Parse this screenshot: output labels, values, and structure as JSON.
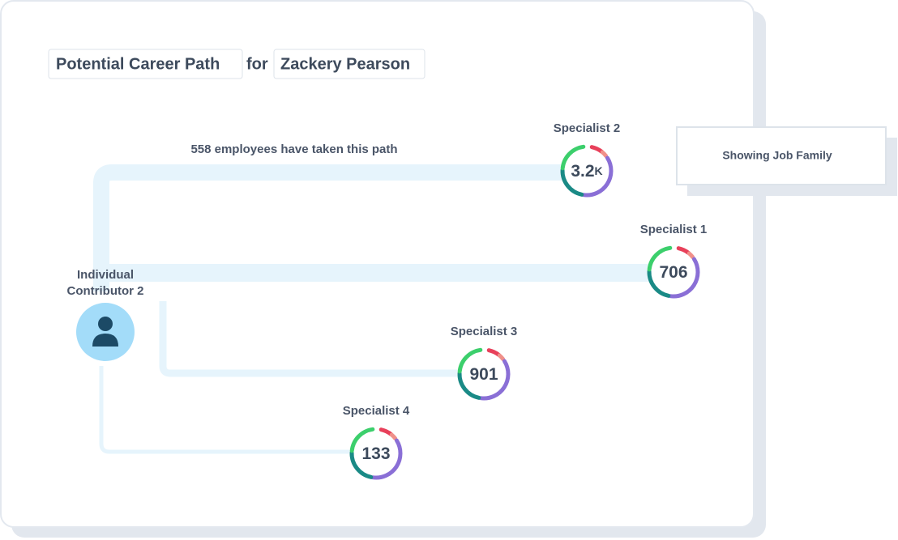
{
  "header": {
    "title": "Potential Career Path",
    "connector": "for",
    "name": "Zackery Pearson"
  },
  "path_note": "558 employees have taken this path",
  "current_role": {
    "line1": "Individual",
    "line2": "Contributor 2"
  },
  "nodes": [
    {
      "label": "Specialist 2",
      "count": "3.2",
      "unit": "K"
    },
    {
      "label": "Specialist 1",
      "count": "706"
    },
    {
      "label": "Specialist 3",
      "count": "901"
    },
    {
      "label": "Specialist 4",
      "count": "133"
    }
  ],
  "panel": {
    "label": "Showing Job Family"
  }
}
